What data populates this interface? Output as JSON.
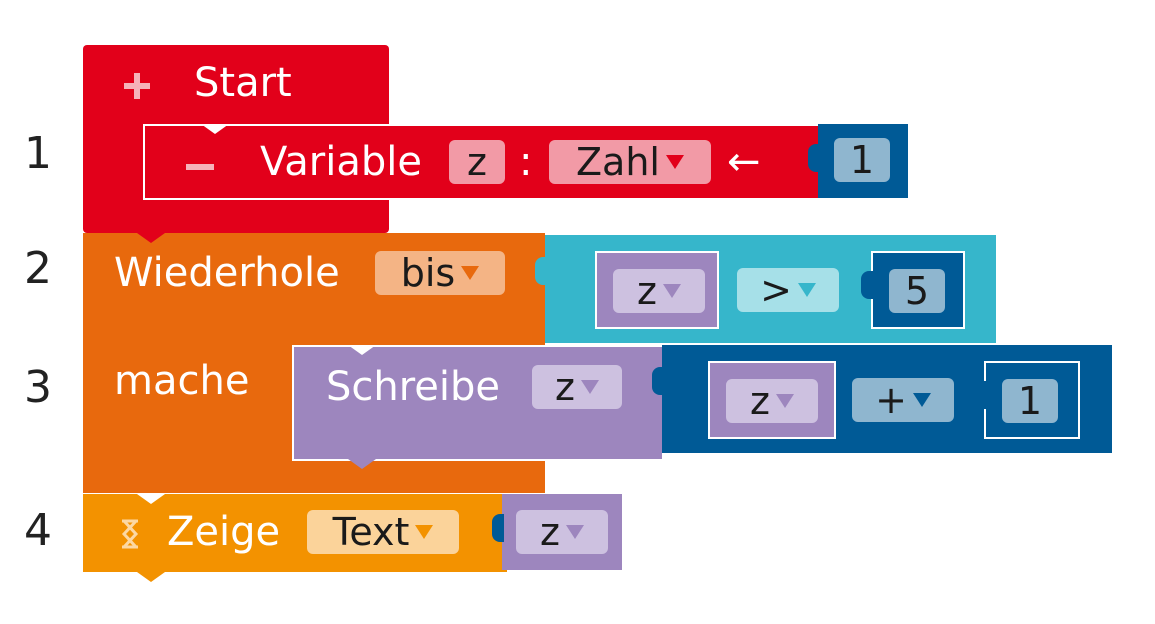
{
  "line_numbers": [
    "1",
    "2",
    "3",
    "4"
  ],
  "start_block": {
    "label": "Start",
    "icon": "plus-icon"
  },
  "variable_block": {
    "label": "Variable",
    "icon": "minus-icon",
    "name": "z",
    "separator": ":",
    "type": "Zahl",
    "assign": "←",
    "value": "1"
  },
  "repeat_block": {
    "label": "Wiederhole",
    "mode": "bis",
    "body_label": "mache"
  },
  "condition": {
    "left": "z",
    "operator": ">",
    "right": "5"
  },
  "write_block": {
    "label": "Schreibe",
    "target": "z"
  },
  "sum_expr": {
    "left": "z",
    "operator": "+",
    "right": "1"
  },
  "show_block": {
    "label": "Zeige",
    "icon": "hourglass-icon",
    "mode": "Text",
    "value": "z"
  },
  "colors": {
    "start_red": "#e2001a",
    "repeat_orange": "#e8690d",
    "show_orange": "#f39200",
    "compare_cyan": "#36b6cb",
    "variable_purple": "#9d86be",
    "math_blue": "#005a96",
    "number_field": "#8fb6cf"
  }
}
